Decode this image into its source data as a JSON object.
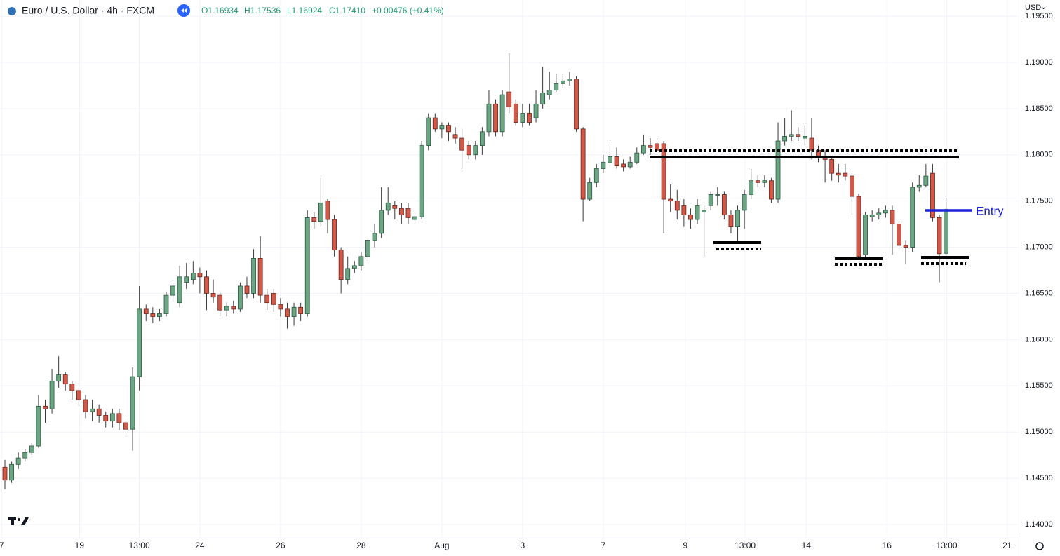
{
  "chart_data": {
    "type": "candlestick",
    "title": "Euro / U.S. Dollar · 4h · FXCM",
    "legend_values": [
      "O1.16934",
      "H1.17536",
      "L1.16924",
      "C1.17410",
      "+0.00476 (+0.41%)"
    ],
    "currency": "USD",
    "annotation": "Entry",
    "up_color": "#6ba583",
    "down_color": "#d0594a",
    "grid": true,
    "x": [
      0,
      1,
      2,
      3,
      4,
      5,
      6,
      7,
      8,
      9,
      10,
      11,
      12,
      13,
      14,
      15,
      16,
      17,
      18,
      19,
      20,
      21,
      22,
      23,
      24,
      25,
      26,
      27,
      28,
      29,
      30,
      31,
      32,
      33,
      34,
      35,
      36,
      37,
      38,
      39,
      40,
      41,
      42,
      43,
      44,
      45,
      46,
      47,
      48,
      49,
      50,
      51,
      52,
      53,
      54,
      55,
      56,
      57,
      58,
      59,
      60,
      61,
      62,
      63,
      64,
      65,
      66,
      67,
      68,
      69,
      70,
      71,
      72,
      73,
      74,
      75,
      76,
      77,
      78,
      79,
      80,
      81,
      82,
      83,
      84,
      85,
      86,
      87,
      88,
      89,
      90,
      91,
      92,
      93,
      94,
      95,
      96,
      97,
      98,
      99,
      100,
      101,
      102,
      103,
      104,
      105,
      106,
      107,
      108,
      109,
      110,
      111,
      112,
      113,
      114,
      115,
      116,
      117,
      118,
      119,
      120,
      121,
      122,
      123,
      124,
      125,
      126,
      127,
      128,
      129,
      130,
      131,
      132,
      133,
      134,
      135,
      136,
      137,
      138,
      139,
      140
    ],
    "open": [
      1.1462,
      1.1448,
      1.1465,
      1.1472,
      1.1478,
      1.1485,
      1.1528,
      1.1525,
      1.1555,
      1.1562,
      1.1552,
      1.1545,
      1.1535,
      1.1522,
      1.1525,
      1.1518,
      1.1512,
      1.152,
      1.151,
      1.1503,
      1.156,
      1.1633,
      1.1628,
      1.1625,
      1.1628,
      1.1648,
      1.164,
      1.1662,
      1.1665,
      1.1672,
      1.1668,
      1.165,
      1.1648,
      1.1632,
      1.1636,
      1.1633,
      1.1658,
      1.165,
      1.1688,
      1.1648,
      1.165,
      1.1638,
      1.1633,
      1.1625,
      1.1635,
      1.1628,
      1.1732,
      1.1728,
      1.175,
      1.173,
      1.1697,
      1.1665,
      1.1677,
      1.168,
      1.169,
      1.1707,
      1.1715,
      1.174,
      1.1745,
      1.1742,
      1.1742,
      1.173,
      1.1733,
      1.181,
      1.184,
      1.1828,
      1.1832,
      1.1822,
      1.1818,
      1.181,
      1.18,
      1.181,
      1.1825,
      1.1855,
      1.1825,
      1.1868,
      1.1855,
      1.1835,
      1.1845,
      1.184,
      1.1855,
      1.1865,
      1.187,
      1.1877,
      1.188,
      1.1882,
      1.1828,
      1.1752,
      1.177,
      1.1785,
      1.1792,
      1.1798,
      1.179,
      1.1787,
      1.1792,
      1.1802,
      1.181,
      1.1812,
      1.1812,
      1.1752,
      1.175,
      1.1745,
      1.1735,
      1.173,
      1.1738,
      1.1745,
      1.1757,
      1.1757,
      1.1735,
      1.1722,
      1.174,
      1.1757,
      1.1772,
      1.177,
      1.1772,
      1.1752,
      1.1815,
      1.182,
      1.1822,
      1.1818,
      1.1818,
      1.1805,
      1.1798,
      1.1795,
      1.178,
      1.178,
      1.1777,
      1.1755,
      1.1692,
      1.1733,
      1.1735,
      1.1737,
      1.174,
      1.1725,
      1.1702,
      1.17,
      1.1765,
      1.1767,
      1.178,
      1.1732,
      1.16934
    ],
    "high": [
      1.147,
      1.1468,
      1.1478,
      1.1482,
      1.1488,
      1.154,
      1.1535,
      1.1568,
      1.1582,
      1.1565,
      1.1555,
      1.1548,
      1.154,
      1.1535,
      1.153,
      1.1522,
      1.1525,
      1.1525,
      1.1515,
      1.157,
      1.1658,
      1.1638,
      1.1635,
      1.1633,
      1.1652,
      1.1662,
      1.168,
      1.1683,
      1.1685,
      1.1678,
      1.1675,
      1.1665,
      1.1652,
      1.164,
      1.1642,
      1.1662,
      1.1668,
      1.1698,
      1.1712,
      1.1655,
      1.1655,
      1.1645,
      1.164,
      1.164,
      1.164,
      1.174,
      1.1738,
      1.1775,
      1.1752,
      1.1735,
      1.17,
      1.169,
      1.1685,
      1.1695,
      1.171,
      1.1725,
      1.1765,
      1.1765,
      1.175,
      1.1748,
      1.1748,
      1.1738,
      1.1815,
      1.1845,
      1.1845,
      1.1835,
      1.1835,
      1.183,
      1.1828,
      1.1815,
      1.1815,
      1.183,
      1.187,
      1.186,
      1.187,
      1.191,
      1.186,
      1.1855,
      1.1855,
      1.187,
      1.1895,
      1.189,
      1.1888,
      1.1888,
      1.189,
      1.1885,
      1.183,
      1.1775,
      1.179,
      1.18,
      1.1812,
      1.1808,
      1.1795,
      1.1798,
      1.1808,
      1.1822,
      1.1818,
      1.1818,
      1.1815,
      1.1768,
      1.1762,
      1.1752,
      1.1742,
      1.1752,
      1.1745,
      1.176,
      1.1765,
      1.176,
      1.174,
      1.1745,
      1.1762,
      1.1785,
      1.1778,
      1.1778,
      1.1775,
      1.1835,
      1.184,
      1.1848,
      1.183,
      1.1832,
      1.184,
      1.181,
      1.1805,
      1.1798,
      1.179,
      1.179,
      1.178,
      1.1758,
      1.1738,
      1.174,
      1.1742,
      1.1745,
      1.1745,
      1.1727,
      1.1707,
      1.177,
      1.1778,
      1.179,
      1.179,
      1.1735,
      1.17536
    ],
    "low": [
      1.1438,
      1.1445,
      1.146,
      1.1468,
      1.1475,
      1.1483,
      1.151,
      1.152,
      1.1548,
      1.1545,
      1.1535,
      1.1528,
      1.1515,
      1.1512,
      1.151,
      1.1505,
      1.1505,
      1.1502,
      1.1495,
      1.148,
      1.1545,
      1.162,
      1.1618,
      1.162,
      1.1625,
      1.164,
      1.1635,
      1.1655,
      1.166,
      1.165,
      1.1632,
      1.164,
      1.1625,
      1.1625,
      1.1628,
      1.163,
      1.1645,
      1.1645,
      1.164,
      1.1632,
      1.163,
      1.1625,
      1.1612,
      1.1615,
      1.162,
      1.1625,
      1.172,
      1.1722,
      1.1715,
      1.169,
      1.165,
      1.166,
      1.1672,
      1.1675,
      1.1685,
      1.17,
      1.171,
      1.1735,
      1.173,
      1.1725,
      1.1725,
      1.1725,
      1.173,
      1.1805,
      1.1825,
      1.1818,
      1.1815,
      1.1812,
      1.1785,
      1.1795,
      1.1795,
      1.18,
      1.182,
      1.182,
      1.182,
      1.1845,
      1.1832,
      1.183,
      1.1832,
      1.1835,
      1.185,
      1.186,
      1.1868,
      1.1872,
      1.1875,
      1.1825,
      1.1728,
      1.175,
      1.1765,
      1.178,
      1.1788,
      1.1785,
      1.1782,
      1.1785,
      1.179,
      1.18,
      1.18,
      1.18,
      1.1715,
      1.1738,
      1.173,
      1.1722,
      1.172,
      1.1725,
      1.169,
      1.174,
      1.1745,
      1.173,
      1.1715,
      1.1705,
      1.172,
      1.1752,
      1.1765,
      1.1765,
      1.1748,
      1.1748,
      1.181,
      1.1815,
      1.1815,
      1.181,
      1.1795,
      1.1792,
      1.177,
      1.1772,
      1.177,
      1.1772,
      1.1735,
      1.1688,
      1.1688,
      1.1728,
      1.173,
      1.1732,
      1.1692,
      1.1698,
      1.1682,
      1.1695,
      1.176,
      1.1765,
      1.1728,
      1.1662,
      1.16924
    ],
    "close": [
      1.1448,
      1.1465,
      1.1472,
      1.1478,
      1.1485,
      1.1528,
      1.1525,
      1.1555,
      1.1562,
      1.1552,
      1.1545,
      1.1535,
      1.1522,
      1.1525,
      1.1518,
      1.1512,
      1.152,
      1.151,
      1.1503,
      1.156,
      1.1633,
      1.1628,
      1.1625,
      1.1628,
      1.1648,
      1.1658,
      1.1668,
      1.1668,
      1.1672,
      1.1668,
      1.165,
      1.1646,
      1.1632,
      1.1636,
      1.1633,
      1.1658,
      1.165,
      1.1688,
      1.1648,
      1.164,
      1.1638,
      1.1633,
      1.1625,
      1.1635,
      1.1628,
      1.1732,
      1.1728,
      1.1748,
      1.173,
      1.1697,
      1.1665,
      1.1677,
      1.168,
      1.169,
      1.1707,
      1.1715,
      1.174,
      1.1748,
      1.1742,
      1.1735,
      1.1732,
      1.1733,
      1.181,
      1.184,
      1.1828,
      1.1832,
      1.1825,
      1.1818,
      1.1805,
      1.18,
      1.181,
      1.1825,
      1.1855,
      1.1825,
      1.1865,
      1.1852,
      1.1835,
      1.1845,
      1.1835,
      1.1855,
      1.1867,
      1.187,
      1.1877,
      1.188,
      1.1882,
      1.1828,
      1.1752,
      1.177,
      1.1785,
      1.1792,
      1.1798,
      1.1788,
      1.1787,
      1.1792,
      1.1802,
      1.181,
      1.1808,
      1.1805,
      1.1752,
      1.175,
      1.174,
      1.1735,
      1.173,
      1.1745,
      1.174,
      1.1757,
      1.1757,
      1.1735,
      1.1722,
      1.174,
      1.1757,
      1.1772,
      1.177,
      1.1772,
      1.1752,
      1.1815,
      1.182,
      1.1822,
      1.182,
      1.182,
      1.1805,
      1.1798,
      1.1795,
      1.178,
      1.1778,
      1.1777,
      1.1755,
      1.169,
      1.1735,
      1.1735,
      1.1737,
      1.174,
      1.1725,
      1.1702,
      1.17,
      1.1765,
      1.1767,
      1.1777,
      1.1732,
      1.1693,
      1.1741
    ],
    "xlim": [
      -0.73,
      150.79
    ],
    "xticks": [
      {
        "value": -0.5,
        "label": "7"
      },
      {
        "value": 11.1,
        "label": "19"
      },
      {
        "value": 20,
        "label": "13:00"
      },
      {
        "value": 29,
        "label": "24"
      },
      {
        "value": 41,
        "label": "26"
      },
      {
        "value": 53,
        "label": "28"
      },
      {
        "value": 65,
        "label": "Aug"
      },
      {
        "value": 77,
        "label": "3"
      },
      {
        "value": 89,
        "label": "7"
      },
      {
        "value": 101.2,
        "label": "9"
      },
      {
        "value": 110.1,
        "label": "13:00"
      },
      {
        "value": 119.2,
        "label": "14"
      },
      {
        "value": 131.2,
        "label": "16"
      },
      {
        "value": 140.1,
        "label": "13:00"
      },
      {
        "value": 149.1,
        "label": "21"
      }
    ],
    "ylim": [
      1.13856,
      1.19675
    ],
    "yticks": [
      {
        "value": 1.14,
        "label": "1.14000"
      },
      {
        "value": 1.145,
        "label": "1.14500"
      },
      {
        "value": 1.15,
        "label": "1.15000"
      },
      {
        "value": 1.155,
        "label": "1.15500"
      },
      {
        "value": 1.16,
        "label": "1.16000"
      },
      {
        "value": 1.165,
        "label": "1.16500"
      },
      {
        "value": 1.17,
        "label": "1.17000"
      },
      {
        "value": 1.175,
        "label": "1.17500"
      },
      {
        "value": 1.18,
        "label": "1.18000"
      },
      {
        "value": 1.185,
        "label": "1.18500"
      },
      {
        "value": 1.19,
        "label": "1.19000"
      },
      {
        "value": 1.195,
        "label": "1.19500"
      }
    ]
  }
}
